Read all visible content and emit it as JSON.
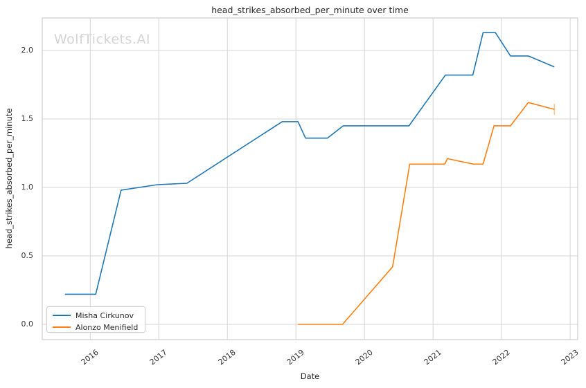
{
  "chart_data": {
    "type": "line",
    "title": "head_strikes_absorbed_per_minute over time",
    "watermark": "WolfTickets.AI",
    "xlabel": "Date",
    "ylabel": "head_strikes_absorbed_per_minute",
    "x_ticks": [
      2016,
      2017,
      2018,
      2019,
      2020,
      2021,
      2022,
      2023
    ],
    "x_tick_labels": [
      "2016",
      "2017",
      "2018",
      "2019",
      "2020",
      "2021",
      "2022",
      "2023"
    ],
    "y_ticks": [
      0.0,
      0.5,
      1.0,
      1.5,
      2.0
    ],
    "y_tick_labels": [
      "0.0",
      "0.5",
      "1.0",
      "1.5",
      "2.0"
    ],
    "xlim": [
      2015.3,
      2023.11
    ],
    "ylim": [
      -0.111,
      2.237
    ],
    "grid": true,
    "legend_position": "lower left",
    "background_color": "#ffffff",
    "grid_color": "#d4d4d4",
    "border_color": "#cccccc",
    "series": [
      {
        "name": "Misha Cirkunov",
        "color": "#1f77b4",
        "x": [
          2015.63,
          2016.08,
          2016.45,
          2016.98,
          2017.41,
          2018.8,
          2019.03,
          2019.14,
          2019.46,
          2019.69,
          2020.65,
          2021.18,
          2021.58,
          2021.73,
          2021.91,
          2022.13,
          2022.39,
          2022.77
        ],
        "y": [
          0.22,
          0.22,
          0.98,
          1.02,
          1.03,
          1.48,
          1.48,
          1.36,
          1.36,
          1.45,
          1.45,
          1.82,
          1.82,
          2.13,
          2.13,
          1.96,
          1.96,
          1.88
        ]
      },
      {
        "name": "Alonzo Menifield",
        "color": "#ff7f0e",
        "x": [
          2019.03,
          2019.68,
          2020.41,
          2020.66,
          2021.17,
          2021.21,
          2021.59,
          2021.73,
          2021.89,
          2022.13,
          2022.39,
          2022.77
        ],
        "y": [
          0.0,
          0.0,
          0.42,
          1.17,
          1.17,
          1.21,
          1.17,
          1.17,
          1.45,
          1.45,
          1.62,
          1.57
        ],
        "end_cap": {
          "x": 2022.77,
          "y_from": 1.53,
          "y_to": 1.61
        }
      }
    ]
  }
}
